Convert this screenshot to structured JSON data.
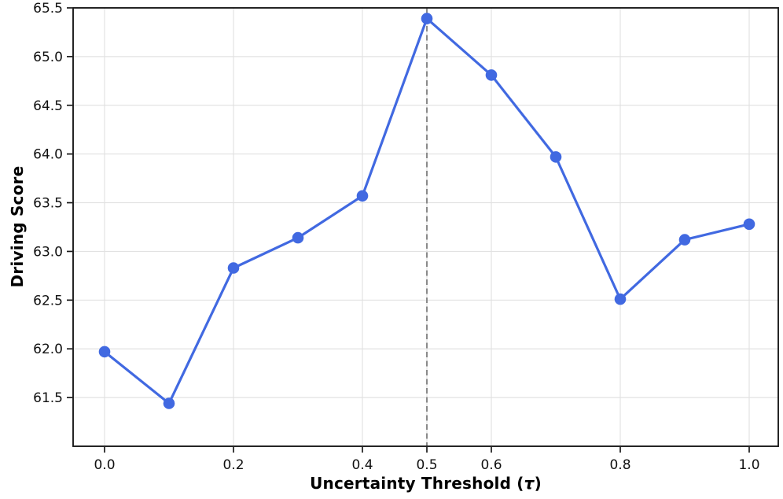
{
  "chart_data": {
    "type": "line",
    "title": "",
    "xlabel": "Uncertainty Threshold (τ)",
    "xlabel_prefix": "Uncertainty Threshold (",
    "xlabel_tau": "τ",
    "xlabel_suffix": ")",
    "ylabel": "Driving Score",
    "x": [
      0.0,
      0.1,
      0.2,
      0.3,
      0.4,
      0.5,
      0.6,
      0.7,
      0.8,
      0.9,
      1.0
    ],
    "y": [
      61.97,
      61.44,
      62.83,
      63.14,
      63.57,
      65.39,
      64.81,
      63.97,
      62.51,
      63.12,
      63.28
    ],
    "xticks": [
      0.0,
      0.2,
      0.4,
      0.5,
      0.6,
      0.8,
      1.0
    ],
    "xtick_labels": [
      "0.0",
      "0.2",
      "0.4",
      "0.5",
      "0.6",
      "0.8",
      "1.0"
    ],
    "yticks": [
      61.5,
      62.0,
      62.5,
      63.0,
      63.5,
      64.0,
      64.5,
      65.0,
      65.5
    ],
    "ytick_labels": [
      "61.5",
      "62.0",
      "62.5",
      "63.0",
      "63.5",
      "64.0",
      "64.5",
      "65.0",
      "65.5"
    ],
    "xlim": [
      -0.049,
      1.045
    ],
    "ylim": [
      61.0,
      65.5
    ],
    "grid": true,
    "legend": "none",
    "line_color": "#4169e1",
    "marker_color": "#4169e1",
    "grid_color": "#e2e2e2",
    "spine_color": "#1a1a1a",
    "vline": {
      "x": 0.5,
      "style": "dashed",
      "color": "#8a8a8a"
    }
  }
}
